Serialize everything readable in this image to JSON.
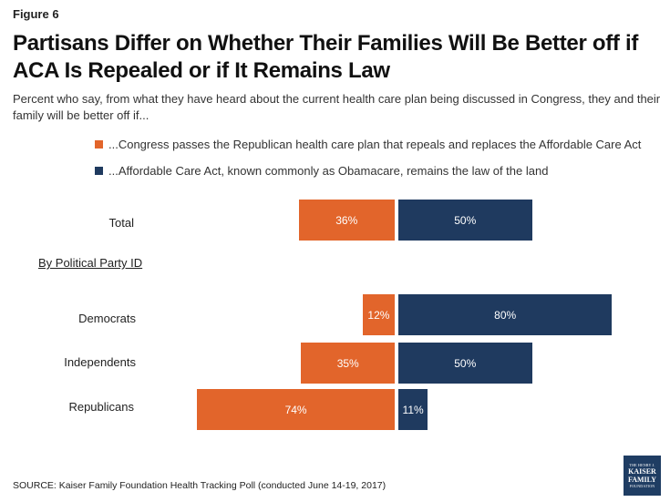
{
  "figure_label": "Figure 6",
  "title": "Partisans Differ on Whether Their Families Will Be Better off if ACA Is Repealed or if It Remains Law",
  "subtitle": "Percent who say, from what they have heard about the current health care plan being discussed in Congress, they and their family will be better off if...",
  "group_label": "By Political Party ID",
  "source": "SOURCE: Kaiser Family Foundation Health Tracking Poll (conducted June 14-19, 2017)",
  "logo": {
    "line1": "THE HENRY J.",
    "line2": "KAISER",
    "line3": "FAMILY",
    "line4": "FOUNDATION"
  },
  "colors": {
    "repeal": "#e2652b",
    "remain": "#1f3a5f"
  },
  "chart_data": {
    "type": "bar",
    "orientation": "horizontal-diverging",
    "categories": [
      "Total",
      "Democrats",
      "Independents",
      "Republicans"
    ],
    "series": [
      {
        "name": "...Congress passes the Republican health care plan that repeals and replaces the Affordable Care Act",
        "values": [
          36,
          12,
          35,
          74
        ],
        "labels": [
          "36%",
          "12%",
          "35%",
          "74%"
        ]
      },
      {
        "name": "...Affordable Care Act, known commonly as Obamacare, remains the law of the land",
        "values": [
          50,
          80,
          50,
          11
        ],
        "labels": [
          "50%",
          "80%",
          "50%",
          "11%"
        ]
      }
    ],
    "legend_position": "top",
    "grid": false
  }
}
